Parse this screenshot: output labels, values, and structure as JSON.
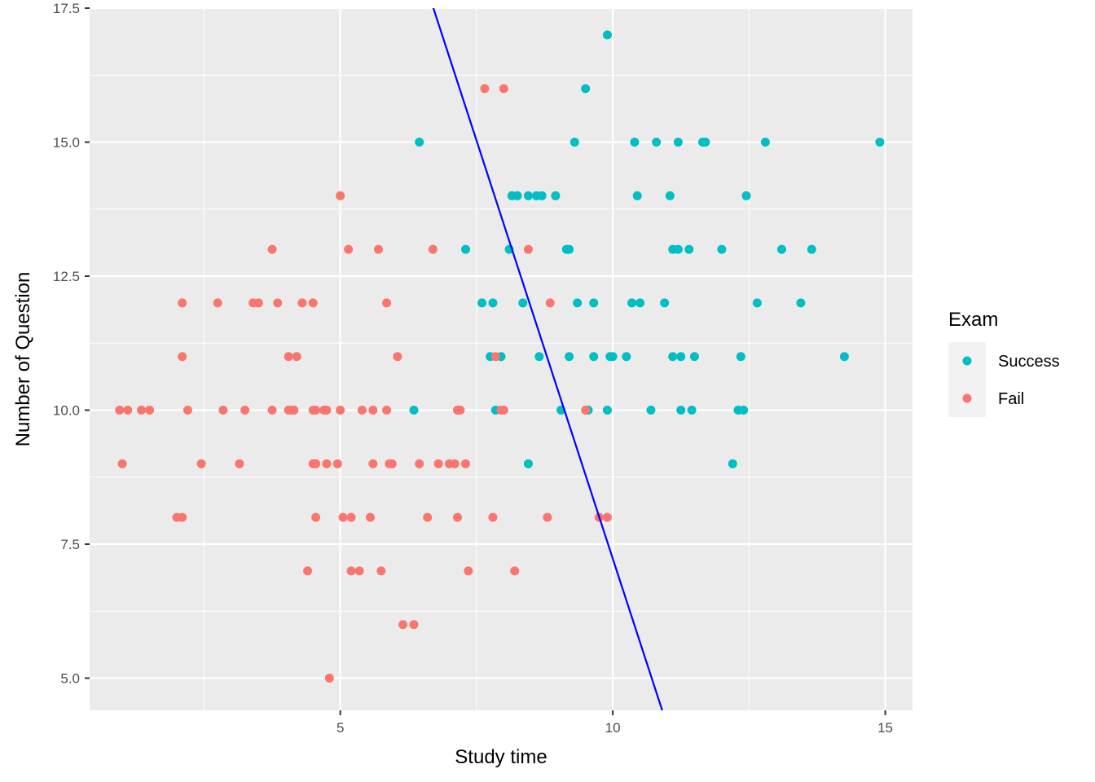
{
  "chart_data": {
    "type": "scatter",
    "title": "",
    "xlabel": "Study time",
    "ylabel": "Number of Question",
    "xlim": [
      0.4,
      15.5
    ],
    "ylim": [
      4.4,
      17.5
    ],
    "x_ticks": [
      5,
      10,
      15
    ],
    "y_ticks": [
      5.0,
      7.5,
      10.0,
      12.5,
      15.0,
      17.5
    ],
    "y_tick_labels": [
      "5.0",
      "7.5",
      "10.0",
      "12.5",
      "15.0",
      "17.5"
    ],
    "grid": true,
    "legend": {
      "title": "Exam",
      "placement": "right",
      "entries": [
        {
          "name": "Success",
          "color": "#00BFC4"
        },
        {
          "name": "Fail",
          "color": "#F8766D"
        }
      ]
    },
    "line": {
      "color": "#0000ff",
      "intercept": 38.43,
      "slope": -3.12
    },
    "series": [
      {
        "name": "Success",
        "color": "#00BFC4",
        "points": [
          [
            6.45,
            15
          ],
          [
            9.9,
            17
          ],
          [
            9.5,
            16
          ],
          [
            9.3,
            15
          ],
          [
            10.4,
            15
          ],
          [
            10.8,
            15
          ],
          [
            11.2,
            15
          ],
          [
            11.65,
            15
          ],
          [
            11.7,
            15
          ],
          [
            12.8,
            15
          ],
          [
            14.9,
            15
          ],
          [
            8.15,
            14
          ],
          [
            8.25,
            14
          ],
          [
            8.45,
            14
          ],
          [
            8.6,
            14
          ],
          [
            8.7,
            14
          ],
          [
            8.95,
            14
          ],
          [
            10.45,
            14
          ],
          [
            11.05,
            14
          ],
          [
            12.45,
            14
          ],
          [
            7.3,
            13
          ],
          [
            8.1,
            13
          ],
          [
            9.15,
            13
          ],
          [
            9.2,
            13
          ],
          [
            11.1,
            13
          ],
          [
            11.2,
            13
          ],
          [
            11.4,
            13
          ],
          [
            12,
            13
          ],
          [
            13.1,
            13
          ],
          [
            13.65,
            13
          ],
          [
            7.6,
            12
          ],
          [
            7.8,
            12
          ],
          [
            8.35,
            12
          ],
          [
            9.35,
            12
          ],
          [
            9.65,
            12
          ],
          [
            10.35,
            12
          ],
          [
            10.5,
            12
          ],
          [
            10.95,
            12
          ],
          [
            12.65,
            12
          ],
          [
            13.45,
            12
          ],
          [
            7.75,
            11
          ],
          [
            7.95,
            11
          ],
          [
            8.65,
            11
          ],
          [
            9.2,
            11
          ],
          [
            9.65,
            11
          ],
          [
            9.95,
            11
          ],
          [
            10,
            11
          ],
          [
            10.25,
            11
          ],
          [
            11.1,
            11
          ],
          [
            11.25,
            11
          ],
          [
            11.5,
            11
          ],
          [
            12.35,
            11
          ],
          [
            14.25,
            11
          ],
          [
            6.35,
            10
          ],
          [
            7.85,
            10
          ],
          [
            9.05,
            10
          ],
          [
            9.55,
            10
          ],
          [
            9.9,
            10
          ],
          [
            10.7,
            10
          ],
          [
            11.25,
            10
          ],
          [
            11.45,
            10
          ],
          [
            12.3,
            10
          ],
          [
            12.4,
            10
          ],
          [
            8.45,
            9
          ],
          [
            12.2,
            9
          ]
        ]
      },
      {
        "name": "Fail",
        "color": "#F8766D",
        "points": [
          [
            7.65,
            16
          ],
          [
            8.0,
            16
          ],
          [
            5.0,
            14
          ],
          [
            3.75,
            13
          ],
          [
            5.15,
            13
          ],
          [
            5.7,
            13
          ],
          [
            6.7,
            13
          ],
          [
            8.45,
            13
          ],
          [
            2.1,
            12
          ],
          [
            2.75,
            12
          ],
          [
            3.4,
            12
          ],
          [
            3.5,
            12
          ],
          [
            3.85,
            12
          ],
          [
            4.3,
            12
          ],
          [
            4.5,
            12
          ],
          [
            5.85,
            12
          ],
          [
            8.85,
            12
          ],
          [
            2.1,
            11
          ],
          [
            4.05,
            11
          ],
          [
            4.2,
            11
          ],
          [
            6.05,
            11
          ],
          [
            7.85,
            11
          ],
          [
            0.95,
            10
          ],
          [
            1.1,
            10
          ],
          [
            1.35,
            10
          ],
          [
            1.5,
            10
          ],
          [
            2.2,
            10
          ],
          [
            2.85,
            10
          ],
          [
            3.25,
            10
          ],
          [
            3.75,
            10
          ],
          [
            4.05,
            10
          ],
          [
            4.1,
            10
          ],
          [
            4.15,
            10
          ],
          [
            4.5,
            10
          ],
          [
            4.55,
            10
          ],
          [
            4.7,
            10
          ],
          [
            4.75,
            10
          ],
          [
            5.0,
            10
          ],
          [
            5.4,
            10
          ],
          [
            5.6,
            10
          ],
          [
            5.85,
            10
          ],
          [
            7.15,
            10
          ],
          [
            7.2,
            10
          ],
          [
            7.95,
            10
          ],
          [
            8.0,
            10
          ],
          [
            9.5,
            10
          ],
          [
            1.0,
            9
          ],
          [
            2.45,
            9
          ],
          [
            3.15,
            9
          ],
          [
            4.5,
            9
          ],
          [
            4.55,
            9
          ],
          [
            4.75,
            9
          ],
          [
            4.95,
            9
          ],
          [
            5.6,
            9
          ],
          [
            5.9,
            9
          ],
          [
            5.95,
            9
          ],
          [
            6.45,
            9
          ],
          [
            6.8,
            9
          ],
          [
            7.0,
            9
          ],
          [
            7.1,
            9
          ],
          [
            7.3,
            9
          ],
          [
            2.0,
            8
          ],
          [
            2.1,
            8
          ],
          [
            4.55,
            8
          ],
          [
            5.05,
            8
          ],
          [
            5.2,
            8
          ],
          [
            5.55,
            8
          ],
          [
            6.6,
            8
          ],
          [
            7.15,
            8
          ],
          [
            7.8,
            8
          ],
          [
            8.8,
            8
          ],
          [
            9.75,
            8
          ],
          [
            9.9,
            8
          ],
          [
            4.4,
            7
          ],
          [
            5.2,
            7
          ],
          [
            5.35,
            7
          ],
          [
            5.75,
            7
          ],
          [
            7.35,
            7
          ],
          [
            8.2,
            7
          ],
          [
            6.15,
            6
          ],
          [
            6.35,
            6
          ],
          [
            4.8,
            5
          ]
        ]
      }
    ]
  }
}
